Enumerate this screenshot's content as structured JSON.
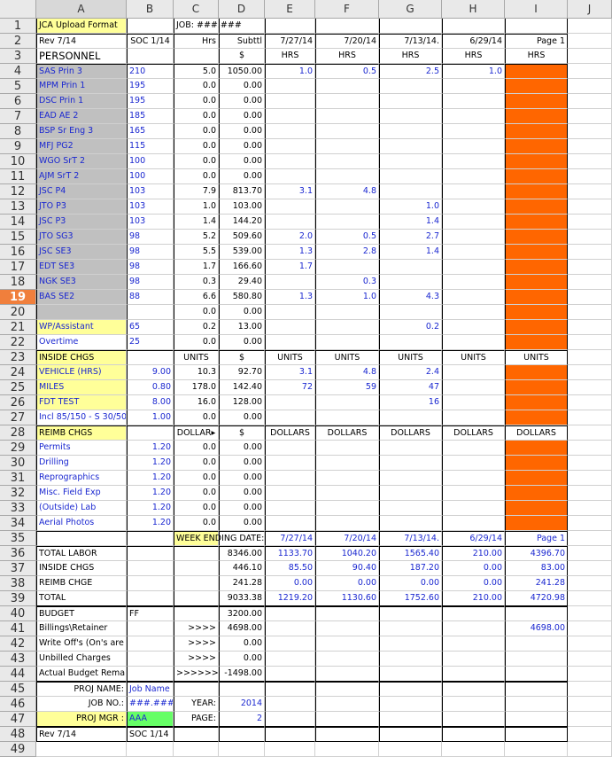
{
  "columns": [
    "A",
    "B",
    "C",
    "D",
    "E",
    "F",
    "G",
    "H",
    "I",
    "J"
  ],
  "rows": [
    {
      "n": "1",
      "cells": {
        "A": "JCA Upload Format",
        "C": "JOB: ###.###"
      }
    },
    {
      "n": "2",
      "cells": {
        "A": "Rev 7/14",
        "B": "SOC 1/14",
        "C": "Hrs",
        "D": "Subttl",
        "E": "7/27/14",
        "F": "7/20/14",
        "G": "7/13/14.",
        "H": "6/29/14",
        "I": "Page 1"
      }
    },
    {
      "n": "3",
      "cells": {
        "A": "PERSONNEL",
        "D": "$",
        "E": "HRS",
        "F": "HRS",
        "G": "HRS",
        "H": "HRS",
        "I": "HRS"
      }
    },
    {
      "n": "4",
      "cells": {
        "A": "SAS Prin 3",
        "B": "210",
        "C": "5.0",
        "D": "1050.00",
        "E": "1.0",
        "F": "0.5",
        "G": "2.5",
        "H": "1.0"
      }
    },
    {
      "n": "5",
      "cells": {
        "A": "MPM Prin 1",
        "B": "195",
        "C": "0.0",
        "D": "0.00"
      }
    },
    {
      "n": "6",
      "cells": {
        "A": "DSC Prin 1",
        "B": "195",
        "C": "0.0",
        "D": "0.00"
      }
    },
    {
      "n": "7",
      "cells": {
        "A": "EAD AE 2",
        "B": "185",
        "C": "0.0",
        "D": "0.00"
      }
    },
    {
      "n": "8",
      "cells": {
        "A": "BSP Sr Eng 3",
        "B": "165",
        "C": "0.0",
        "D": "0.00"
      }
    },
    {
      "n": "9",
      "cells": {
        "A": "MFJ PG2",
        "B": "115",
        "C": "0.0",
        "D": "0.00"
      }
    },
    {
      "n": "10",
      "cells": {
        "A": "WGO SrT 2",
        "B": "100",
        "C": "0.0",
        "D": "0.00"
      }
    },
    {
      "n": "11",
      "cells": {
        "A": "AJM SrT 2",
        "B": "100",
        "C": "0.0",
        "D": "0.00"
      }
    },
    {
      "n": "12",
      "cells": {
        "A": "JSC P4",
        "B": "103",
        "C": "7.9",
        "D": "813.70",
        "E": "3.1",
        "F": "4.8"
      }
    },
    {
      "n": "13",
      "cells": {
        "A": "JTO P3",
        "B": "103",
        "C": "1.0",
        "D": "103.00",
        "G": "1.0"
      }
    },
    {
      "n": "14",
      "cells": {
        "A": "JSC P3",
        "B": "103",
        "C": "1.4",
        "D": "144.20",
        "G": "1.4"
      }
    },
    {
      "n": "15",
      "cells": {
        "A": "JTO SG3",
        "B": "98",
        "C": "5.2",
        "D": "509.60",
        "E": "2.0",
        "F": "0.5",
        "G": "2.7"
      }
    },
    {
      "n": "16",
      "cells": {
        "A": "JSC SE3",
        "B": "98",
        "C": "5.5",
        "D": "539.00",
        "E": "1.3",
        "F": "2.8",
        "G": "1.4"
      }
    },
    {
      "n": "17",
      "cells": {
        "A": "EDT SE3",
        "B": "98",
        "C": "1.7",
        "D": "166.60",
        "E": "1.7"
      }
    },
    {
      "n": "18",
      "cells": {
        "A": "NGK SE3",
        "B": "98",
        "C": "0.3",
        "D": "29.40",
        "F": "0.3"
      }
    },
    {
      "n": "19",
      "cells": {
        "A": "BAS SE2",
        "B": "88",
        "C": "6.6",
        "D": "580.80",
        "E": "1.3",
        "F": "1.0",
        "G": "4.3"
      }
    },
    {
      "n": "20",
      "cells": {
        "C": "0.0",
        "D": "0.00"
      }
    },
    {
      "n": "21",
      "cells": {
        "A": "WP/Assistant",
        "B": "65",
        "C": "0.2",
        "D": "13.00",
        "G": "0.2"
      }
    },
    {
      "n": "22",
      "cells": {
        "A": "Overtime",
        "B": "25",
        "C": "0.0",
        "D": "0.00"
      }
    },
    {
      "n": "23",
      "cells": {
        "A": "INSIDE CHGS",
        "C": "UNITS",
        "D": "$",
        "E": "UNITS",
        "F": "UNITS",
        "G": "UNITS",
        "H": "UNITS",
        "I": "UNITS"
      }
    },
    {
      "n": "24",
      "cells": {
        "A": "VEHICLE (HRS)",
        "B": "9.00",
        "C": "10.3",
        "D": "92.70",
        "E": "3.1",
        "F": "4.8",
        "G": "2.4"
      }
    },
    {
      "n": "25",
      "cells": {
        "A": "MILES",
        "B": "0.80",
        "C": "178.0",
        "D": "142.40",
        "E": "72",
        "F": "59",
        "G": "47"
      }
    },
    {
      "n": "26",
      "cells": {
        "A": "FDT TEST",
        "B": "8.00",
        "C": "16.0",
        "D": "128.00",
        "G": "16"
      }
    },
    {
      "n": "27",
      "cells": {
        "A": "Incl 85/150 - S 30/50",
        "B": "1.00",
        "C": "0.0",
        "D": "0.00"
      }
    },
    {
      "n": "28",
      "cells": {
        "A": "REIMB CHGS",
        "C": "DOLLAR▸",
        "D": "$",
        "E": "DOLLARS",
        "F": "DOLLARS",
        "G": "DOLLARS",
        "H": "DOLLARS",
        "I": "DOLLARS"
      }
    },
    {
      "n": "29",
      "cells": {
        "A": "Permits",
        "B": "1.20",
        "C": "0.0",
        "D": "0.00"
      }
    },
    {
      "n": "30",
      "cells": {
        "A": "Drilling",
        "B": "1.20",
        "C": "0.0",
        "D": "0.00"
      }
    },
    {
      "n": "31",
      "cells": {
        "A": "Reprographics",
        "B": "1.20",
        "C": "0.0",
        "D": "0.00"
      }
    },
    {
      "n": "32",
      "cells": {
        "A": "Misc. Field Exp",
        "B": "1.20",
        "C": "0.0",
        "D": "0.00"
      }
    },
    {
      "n": "33",
      "cells": {
        "A": "(Outside) Lab",
        "B": "1.20",
        "C": "0.0",
        "D": "0.00"
      }
    },
    {
      "n": "34",
      "cells": {
        "A": "Aerial Photos",
        "B": "1.20",
        "C": "0.0",
        "D": "0.00"
      }
    },
    {
      "n": "35",
      "cells": {
        "C": "WEEK ENDING DATE:",
        "E": "7/27/14",
        "F": "7/20/14",
        "G": "7/13/14.",
        "H": "6/29/14",
        "I": "Page 1"
      }
    },
    {
      "n": "36",
      "cells": {
        "A": "TOTAL LABOR",
        "D": "8346.00",
        "E": "1133.70",
        "F": "1040.20",
        "G": "1565.40",
        "H": "210.00",
        "I": "4396.70"
      }
    },
    {
      "n": "37",
      "cells": {
        "A": "INSIDE CHGS",
        "D": "446.10",
        "E": "85.50",
        "F": "90.40",
        "G": "187.20",
        "H": "0.00",
        "I": "83.00"
      }
    },
    {
      "n": "38",
      "cells": {
        "A": "REIMB CHGE",
        "D": "241.28",
        "E": "0.00",
        "F": "0.00",
        "G": "0.00",
        "H": "0.00",
        "I": "241.28"
      }
    },
    {
      "n": "39",
      "cells": {
        "A": "TOTAL",
        "D": "9033.38",
        "E": "1219.20",
        "F": "1130.60",
        "G": "1752.60",
        "H": "210.00",
        "I": "4720.98"
      }
    },
    {
      "n": "40",
      "cells": {
        "A": "BUDGET",
        "B": "FF",
        "D": "3200.00"
      }
    },
    {
      "n": "41",
      "cells": {
        "A": "Billings\\Retainer",
        "C": ">>>>",
        "D": "4698.00",
        "I": "4698.00"
      }
    },
    {
      "n": "42",
      "cells": {
        "A": "Write Off's (On's are negative #)",
        "C": ">>>>",
        "D": "0.00"
      }
    },
    {
      "n": "43",
      "cells": {
        "A": "Unbilled Charges",
        "C": ">>>>",
        "D": "0.00"
      }
    },
    {
      "n": "44",
      "cells": {
        "A": "Actual Budget Remaining",
        "C": ">>>>>>",
        "D": "-1498.00"
      }
    },
    {
      "n": "45",
      "cells": {
        "A": "PROJ NAME:",
        "B": "Job Name"
      }
    },
    {
      "n": "46",
      "cells": {
        "A": "JOB NO.:",
        "B": "###.###",
        "C": "YEAR:",
        "D": "2014"
      }
    },
    {
      "n": "47",
      "cells": {
        "A": "PROJ MGR :",
        "B": "AAA",
        "C": "PAGE:",
        "D": "2"
      }
    },
    {
      "n": "48",
      "cells": {
        "A": "Rev 7/14",
        "B": "SOC 1/14"
      }
    },
    {
      "n": "49",
      "cells": {}
    }
  ]
}
